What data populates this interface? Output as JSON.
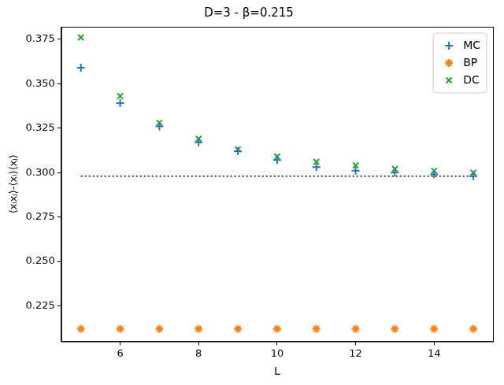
{
  "chart_data": {
    "type": "scatter",
    "title": "D=3 - β=0.215",
    "x_label": "L",
    "y_label": "⟨xᵢxⱼ⟩-⟨xᵢ⟩⟨xⱼ⟩",
    "x": [
      5,
      6,
      7,
      8,
      9,
      10,
      11,
      12,
      13,
      14,
      15
    ],
    "series": [
      {
        "name": "MC",
        "color": "#1f77b4",
        "marker": "plus",
        "values": [
          0.359,
          0.339,
          0.326,
          0.317,
          0.312,
          0.307,
          0.303,
          0.301,
          0.3,
          0.299,
          0.298
        ]
      },
      {
        "name": "BP",
        "color": "#ff7f0e",
        "marker": "star",
        "values": [
          0.212,
          0.212,
          0.212,
          0.212,
          0.212,
          0.212,
          0.212,
          0.212,
          0.212,
          0.212,
          0.212
        ]
      },
      {
        "name": "DC",
        "color": "#2ca02c",
        "marker": "x",
        "values": [
          0.376,
          0.343,
          0.328,
          0.319,
          0.313,
          0.309,
          0.306,
          0.304,
          0.302,
          0.301,
          0.3
        ]
      },
      {
        "type": "line",
        "line_style": "dotted",
        "color": "#000000",
        "x": [
          5,
          15
        ],
        "values": [
          0.298,
          0.298
        ]
      }
    ],
    "xlim": [
      4.5,
      15.5
    ],
    "xticks": [
      6,
      8,
      10,
      12,
      14
    ],
    "ylim": [
      0.205,
      0.382
    ],
    "yticks": [
      {
        "value": 0.225,
        "label": "0.225"
      },
      {
        "value": 0.25,
        "label": "0.250"
      },
      {
        "value": 0.275,
        "label": "0.275"
      },
      {
        "value": 0.3,
        "label": "0.300"
      },
      {
        "value": 0.325,
        "label": "0.325"
      },
      {
        "value": 0.35,
        "label": "0.350"
      },
      {
        "value": 0.375,
        "label": "0.375"
      }
    ],
    "grid": false,
    "legend": "upper right"
  }
}
